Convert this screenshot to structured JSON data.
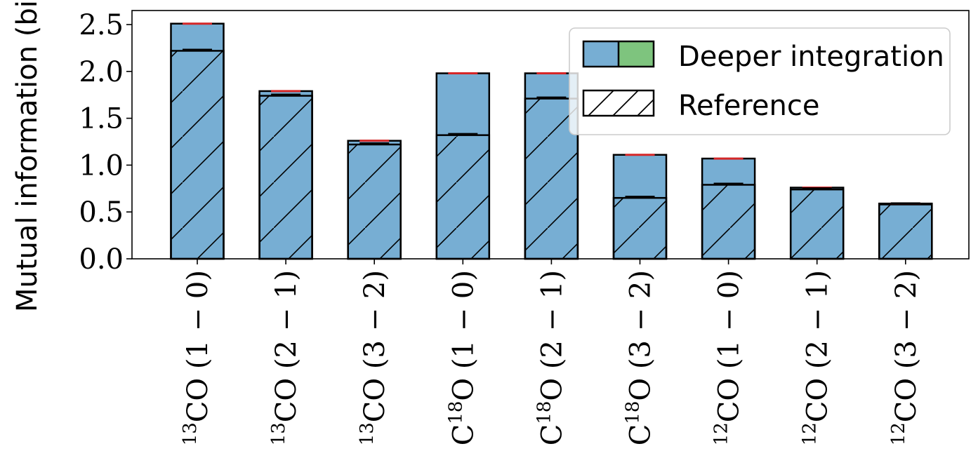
{
  "chart_data": {
    "type": "bar",
    "ylabel": "Mutual information (bi",
    "ylim": [
      0,
      2.65
    ],
    "yticks": [
      "0.0",
      "0.5",
      "1.0",
      "1.5",
      "2.0",
      "2.5"
    ],
    "categories": [
      {
        "sup_pre": "13",
        "base": "CO",
        "sup_mid": "",
        "tail": "",
        "transition": "(1 − 0)"
      },
      {
        "sup_pre": "13",
        "base": "CO",
        "sup_mid": "",
        "tail": "",
        "transition": "(2 − 1)"
      },
      {
        "sup_pre": "13",
        "base": "CO",
        "sup_mid": "",
        "tail": "",
        "transition": "(3 − 2)"
      },
      {
        "sup_pre": "",
        "base": "C",
        "sup_mid": "18",
        "tail": "O",
        "transition": "(1 − 0)"
      },
      {
        "sup_pre": "",
        "base": "C",
        "sup_mid": "18",
        "tail": "O",
        "transition": "(2 − 1)"
      },
      {
        "sup_pre": "",
        "base": "C",
        "sup_mid": "18",
        "tail": "O",
        "transition": "(3 − 2)"
      },
      {
        "sup_pre": "12",
        "base": "CO",
        "sup_mid": "",
        "tail": "",
        "transition": "(1 − 0)"
      },
      {
        "sup_pre": "12",
        "base": "CO",
        "sup_mid": "",
        "tail": "",
        "transition": "(2 − 1)"
      },
      {
        "sup_pre": "12",
        "base": "CO",
        "sup_mid": "",
        "tail": "",
        "transition": "(3 − 2)"
      }
    ],
    "series": [
      {
        "name": "Deeper integration",
        "values": [
          2.51,
          1.79,
          1.26,
          1.98,
          1.98,
          1.11,
          1.07,
          0.76,
          0.59
        ],
        "color": "#77aed3",
        "alt_color": "#7ec47e",
        "error_color": "#d62728"
      },
      {
        "name": "Reference",
        "values": [
          2.22,
          1.74,
          1.22,
          1.32,
          1.71,
          0.65,
          0.79,
          0.74,
          0.58
        ],
        "color": "#77aed3",
        "hatch": "/"
      }
    ],
    "legend": {
      "position": "top-right"
    },
    "grid": false
  }
}
